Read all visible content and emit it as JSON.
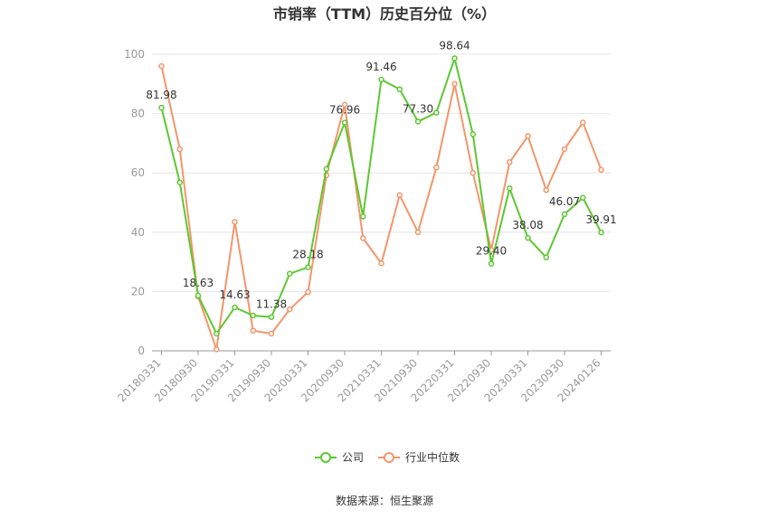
{
  "chart_data": {
    "type": "line",
    "title": "市销率（TTM）历史百分位（%）",
    "source": "数据来源：恒生聚源",
    "ylim": [
      0,
      100
    ],
    "yticks": [
      "0",
      "20",
      "40",
      "60",
      "80",
      "100"
    ],
    "grid": true,
    "legend_position": "bottom",
    "x_labels": [
      "20180331",
      "20180930",
      "20190331",
      "20190930",
      "20200331",
      "20200930",
      "20210331",
      "20210930",
      "20220331",
      "20220930",
      "20230331",
      "20230930",
      "20240126"
    ],
    "series": [
      {
        "name": "公司",
        "color": "#5cc831",
        "values": [
          81.98,
          56.8,
          18.63,
          5.8,
          14.63,
          11.9,
          11.38,
          26.0,
          28.18,
          61.3,
          76.96,
          45.3,
          91.46,
          88.2,
          77.3,
          80.3,
          98.64,
          73.0,
          29.4,
          54.8,
          38.08,
          31.5,
          46.07,
          51.6,
          39.91
        ],
        "labels": [
          "81.98",
          "",
          "18.63",
          "",
          "14.63",
          "",
          "11.38",
          "",
          "28.18",
          "",
          "76.96",
          "",
          "91.46",
          "",
          "77.30",
          "",
          "98.64",
          "",
          "29.40",
          "",
          "38.08",
          "",
          "46.07",
          "",
          "39.91"
        ]
      },
      {
        "name": "行业中位数",
        "color": "#f4956a",
        "values": [
          96.0,
          68.0,
          18.3,
          0.5,
          43.5,
          6.8,
          5.8,
          14.0,
          19.8,
          59.2,
          83.0,
          38.0,
          29.5,
          52.5,
          40.0,
          61.8,
          90.0,
          60.0,
          34.0,
          63.6,
          72.4,
          54.2,
          68.0,
          77.0,
          61.0
        ]
      }
    ]
  }
}
